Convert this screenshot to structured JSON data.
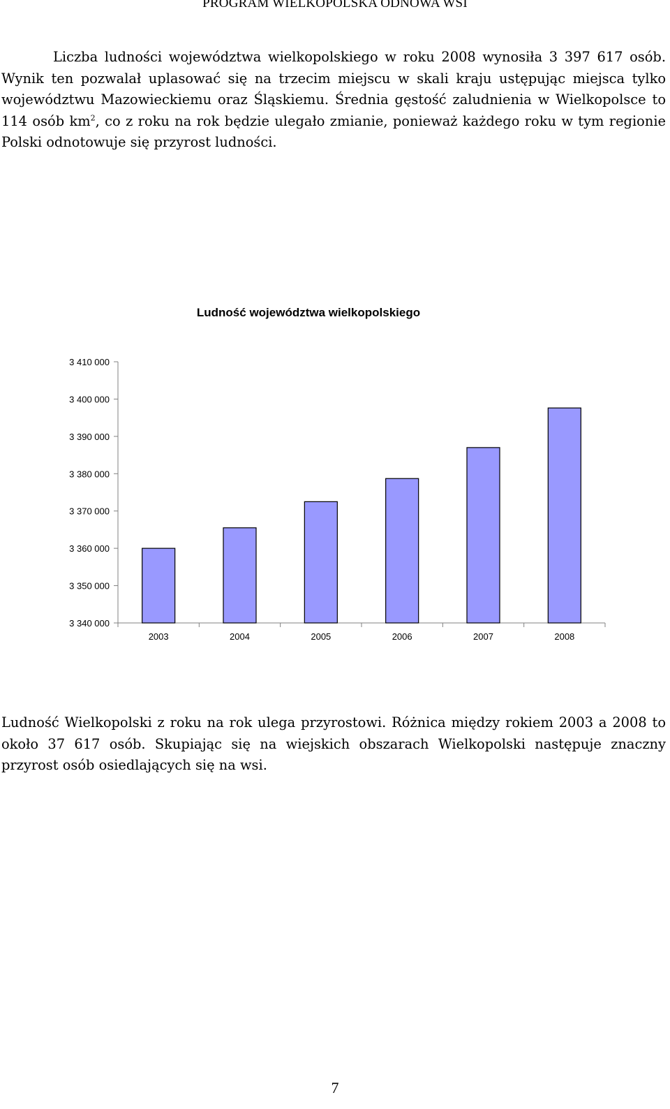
{
  "header": {
    "text": "PROGRAM WIELKOPOLSKA ODNOWA WSI"
  },
  "intro": {
    "text_before_sup": "Liczba ludności województwa wielkopolskiego w roku 2008 wynosiła 3 397 617 osób. Wynik ten pozwalał uplasować się na trzecim miejscu w skali kraju ustępując miejsca tylko województwu Mazowieckiemu oraz Śląskiemu. Średnia gęstość zaludnienia w Wielkopolsce to 114 osób km",
    "superscript": "2",
    "text_after_sup": ", co z roku na rok będzie ulegało zmianie, ponieważ każdego roku w tym regionie Polski odnotowuje się przyrost ludności."
  },
  "chart_data": {
    "type": "bar",
    "title": "Ludność województwa wielkopolskiego",
    "categories": [
      "2003",
      "2004",
      "2005",
      "2006",
      "2007",
      "2008"
    ],
    "values": [
      3360000,
      3365500,
      3372500,
      3378700,
      3387000,
      3397617
    ],
    "ylim": [
      3340000,
      3410000
    ],
    "yticks": [
      "3 340 000",
      "3 350 000",
      "3 360 000",
      "3 370 000",
      "3 380 000",
      "3 390 000",
      "3 400 000",
      "3 410 000"
    ],
    "bar_color": "#9999ff",
    "grid": false,
    "legend": "none"
  },
  "summary": {
    "text": "Ludność Wielkopolski z roku na rok ulega przyrostowi. Różnica między rokiem 2003 a 2008 to około 37 617 osób. Skupiając się na wiejskich obszarach Wielkopolski następuje znaczny przyrost osób osiedlających się na wsi."
  },
  "page_number": "7"
}
